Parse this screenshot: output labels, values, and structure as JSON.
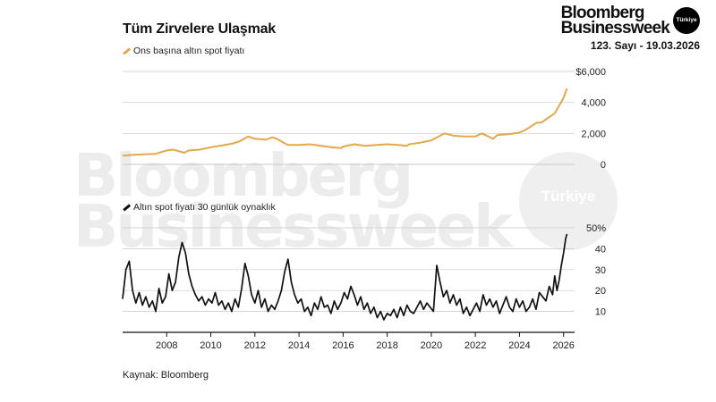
{
  "header": {
    "title": "Tüm Zirvelere Ulaşmak"
  },
  "branding": {
    "name_line1": "Bloomberg",
    "name_line2": "Businessweek",
    "badge": "Türkiye",
    "issue": "123. Sayı - 19.03.2026"
  },
  "watermark": {
    "line1": "Bloomberg",
    "line2": "Businessweek",
    "badge": "Türkiye"
  },
  "footer": {
    "source": "Kaynak: Bloomberg"
  },
  "colors": {
    "gold": "#e3a84d",
    "volatility": "#111111",
    "grid": "#c9c9c9"
  },
  "chart_data": [
    {
      "type": "line",
      "legend": "Ons başına altın spot fiyatı",
      "ylim": [
        0,
        6000
      ],
      "yticks": [
        0,
        2000,
        4000,
        6000
      ],
      "ytick_labels": [
        "0",
        "2,000",
        "4,000",
        "$6,000"
      ],
      "grid": true,
      "x": [
        2006.0,
        2006.5,
        2007.0,
        2007.5,
        2008.0,
        2008.3,
        2008.8,
        2009.0,
        2009.5,
        2010.0,
        2010.5,
        2011.0,
        2011.3,
        2011.7,
        2012.0,
        2012.5,
        2012.8,
        2013.0,
        2013.3,
        2013.5,
        2014.0,
        2014.5,
        2015.0,
        2015.5,
        2015.9,
        2016.0,
        2016.5,
        2017.0,
        2017.5,
        2018.0,
        2018.5,
        2018.9,
        2019.0,
        2019.5,
        2020.0,
        2020.6,
        2021.0,
        2021.5,
        2022.0,
        2022.3,
        2022.8,
        2023.0,
        2023.5,
        2024.0,
        2024.3,
        2024.8,
        2025.0,
        2025.3,
        2025.6,
        2025.8,
        2026.0,
        2026.15
      ],
      "y": [
        560,
        620,
        650,
        680,
        900,
        950,
        750,
        900,
        950,
        1100,
        1220,
        1350,
        1480,
        1800,
        1650,
        1600,
        1750,
        1650,
        1400,
        1250,
        1250,
        1300,
        1200,
        1100,
        1050,
        1150,
        1300,
        1200,
        1250,
        1300,
        1250,
        1200,
        1300,
        1400,
        1550,
        2000,
        1850,
        1800,
        1800,
        2000,
        1650,
        1900,
        1950,
        2050,
        2250,
        2700,
        2700,
        3000,
        3300,
        3800,
        4300,
        4900
      ]
    },
    {
      "type": "line",
      "legend": "Altın spot fiyatı 30 günlük oynaklık",
      "ylim": [
        0,
        50
      ],
      "yticks": [
        10,
        20,
        30,
        40,
        50
      ],
      "ytick_labels": [
        "10",
        "20",
        "30",
        "40",
        "50%"
      ],
      "xticks": [
        2008,
        2010,
        2012,
        2014,
        2016,
        2018,
        2020,
        2022,
        2024,
        2026
      ],
      "grid": true,
      "x": [
        2006.0,
        2006.15,
        2006.3,
        2006.45,
        2006.6,
        2006.75,
        2006.9,
        2007.05,
        2007.2,
        2007.35,
        2007.5,
        2007.65,
        2007.8,
        2007.95,
        2008.1,
        2008.25,
        2008.4,
        2008.55,
        2008.7,
        2008.85,
        2009.0,
        2009.15,
        2009.3,
        2009.45,
        2009.6,
        2009.75,
        2009.9,
        2010.05,
        2010.2,
        2010.35,
        2010.5,
        2010.65,
        2010.8,
        2010.95,
        2011.1,
        2011.25,
        2011.4,
        2011.55,
        2011.7,
        2011.85,
        2012.0,
        2012.15,
        2012.3,
        2012.45,
        2012.6,
        2012.75,
        2012.9,
        2013.05,
        2013.2,
        2013.35,
        2013.5,
        2013.65,
        2013.8,
        2013.95,
        2014.1,
        2014.25,
        2014.4,
        2014.55,
        2014.7,
        2014.85,
        2015.0,
        2015.15,
        2015.3,
        2015.45,
        2015.6,
        2015.75,
        2015.9,
        2016.05,
        2016.2,
        2016.35,
        2016.5,
        2016.65,
        2016.8,
        2016.95,
        2017.1,
        2017.25,
        2017.4,
        2017.55,
        2017.7,
        2017.85,
        2018.0,
        2018.15,
        2018.3,
        2018.45,
        2018.6,
        2018.75,
        2018.9,
        2019.05,
        2019.2,
        2019.35,
        2019.5,
        2019.65,
        2019.8,
        2019.95,
        2020.1,
        2020.25,
        2020.4,
        2020.55,
        2020.7,
        2020.85,
        2021.0,
        2021.15,
        2021.3,
        2021.45,
        2021.6,
        2021.75,
        2021.9,
        2022.05,
        2022.2,
        2022.35,
        2022.5,
        2022.65,
        2022.8,
        2022.95,
        2023.1,
        2023.25,
        2023.4,
        2023.55,
        2023.7,
        2023.85,
        2024.0,
        2024.15,
        2024.3,
        2024.45,
        2024.6,
        2024.75,
        2024.9,
        2025.05,
        2025.2,
        2025.35,
        2025.5,
        2025.6,
        2025.7,
        2025.8,
        2025.9,
        2026.0,
        2026.1,
        2026.15
      ],
      "y": [
        16,
        30,
        34,
        20,
        14,
        19,
        13,
        17,
        12,
        15,
        10,
        21,
        14,
        17,
        28,
        20,
        24,
        36,
        43,
        38,
        28,
        22,
        18,
        15,
        17,
        13,
        16,
        14,
        19,
        13,
        15,
        11,
        14,
        10,
        16,
        12,
        21,
        33,
        27,
        18,
        14,
        20,
        12,
        16,
        10,
        13,
        11,
        15,
        20,
        29,
        35,
        24,
        18,
        14,
        16,
        10,
        12,
        8,
        14,
        11,
        17,
        12,
        13,
        9,
        15,
        11,
        14,
        19,
        16,
        22,
        18,
        13,
        17,
        11,
        14,
        9,
        12,
        7,
        10,
        6,
        9,
        8,
        11,
        7,
        12,
        8,
        13,
        10,
        9,
        12,
        15,
        11,
        14,
        12,
        10,
        32,
        24,
        17,
        20,
        14,
        18,
        13,
        16,
        9,
        12,
        8,
        11,
        14,
        10,
        18,
        13,
        16,
        12,
        15,
        9,
        13,
        17,
        12,
        10,
        16,
        12,
        15,
        10,
        12,
        16,
        11,
        19,
        17,
        15,
        22,
        18,
        27,
        20,
        25,
        32,
        38,
        45,
        47
      ]
    }
  ]
}
